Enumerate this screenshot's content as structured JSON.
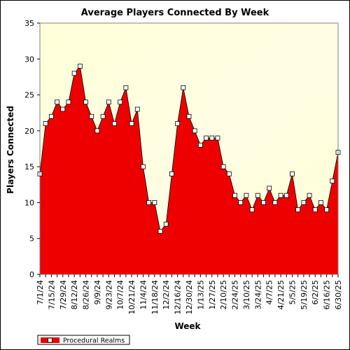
{
  "chart_data": {
    "type": "area",
    "title": "Average Players Connected By Week",
    "xlabel": "Week",
    "ylabel": "Players Connected",
    "ylim": [
      0,
      35
    ],
    "yticks": [
      0,
      5,
      10,
      15,
      20,
      25,
      30,
      35
    ],
    "grid": false,
    "legend_position": "bottom-left",
    "x_tick_labels": [
      "7/1/24",
      "7/15/24",
      "7/29/24",
      "8/12/24",
      "8/26/24",
      "9/9/24",
      "9/23/24",
      "10/7/24",
      "10/21/24",
      "11/4/24",
      "11/18/24",
      "12/2/24",
      "12/16/24",
      "12/30/24",
      "1/13/25",
      "1/27/25",
      "2/10/25",
      "2/24/25",
      "3/10/25",
      "3/24/25",
      "4/7/25",
      "4/21/25",
      "5/5/25",
      "5/19/25",
      "6/2/25",
      "6/16/25",
      "6/30/25"
    ],
    "series": [
      {
        "name": "Procedural Realms",
        "color": "#ee0000",
        "values": [
          14,
          21,
          22,
          24,
          23,
          24,
          28,
          29,
          24,
          22,
          20,
          22,
          24,
          21,
          24,
          26,
          21,
          23,
          15,
          10,
          10,
          6,
          7,
          14,
          21,
          26,
          22,
          20,
          18,
          19,
          19,
          19,
          15,
          14,
          11,
          10,
          11,
          9,
          11,
          10,
          12,
          10,
          11,
          11,
          14,
          9,
          10,
          11,
          9,
          10,
          9,
          13,
          17
        ]
      }
    ]
  }
}
